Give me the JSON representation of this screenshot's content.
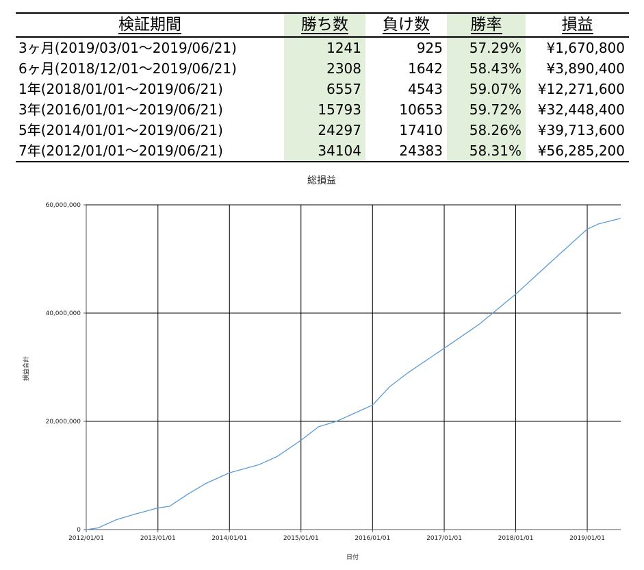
{
  "table": {
    "headers": [
      "検証期間",
      "勝ち数",
      "負け数",
      "勝率",
      "損益"
    ],
    "rows": [
      {
        "period": "3ヶ月(2019/03/01～2019/06/21)",
        "wins": "1241",
        "losses": "925",
        "win_rate": "57.29%",
        "profit": "¥1,670,800"
      },
      {
        "period": "6ヶ月(2018/12/01～2019/06/21)",
        "wins": "2308",
        "losses": "1642",
        "win_rate": "58.43%",
        "profit": "¥3,890,400"
      },
      {
        "period": "1年(2018/01/01～2019/06/21)",
        "wins": "6557",
        "losses": "4543",
        "win_rate": "59.07%",
        "profit": "¥12,271,600"
      },
      {
        "period": "3年(2016/01/01～2019/06/21)",
        "wins": "15793",
        "losses": "10653",
        "win_rate": "59.72%",
        "profit": "¥32,448,400"
      },
      {
        "period": "5年(2014/01/01～2019/06/21)",
        "wins": "24297",
        "losses": "17410",
        "win_rate": "58.26%",
        "profit": "¥39,713,600"
      },
      {
        "period": "7年(2012/01/01～2019/06/21)",
        "wins": "34104",
        "losses": "24383",
        "win_rate": "58.31%",
        "profit": "¥56,285,200"
      }
    ],
    "highlight_color": "#e2efda"
  },
  "chart_data": {
    "type": "line",
    "title": "総損益",
    "xlabel": "日付",
    "ylabel": "損益合計",
    "x_ticks": [
      "2012/01/01",
      "2013/01/01",
      "2014/01/01",
      "2015/01/01",
      "2016/01/01",
      "2017/01/01",
      "2018/01/01",
      "2019/01/01"
    ],
    "y_ticks": [
      "0",
      "20,000,000",
      "40,000,000",
      "60,000,000"
    ],
    "ylim": [
      0,
      60000000
    ],
    "xlim": [
      "2012/01/01",
      "2019/06/21"
    ],
    "grid": true,
    "line_color": "#5b9bd5",
    "series": [
      {
        "x": [
          "2012/01/01",
          "2012/03/01",
          "2012/06/01",
          "2012/09/01",
          "2013/01/01",
          "2013/03/01",
          "2013/06/01",
          "2013/09/01",
          "2014/01/01",
          "2014/06/01",
          "2014/09/01",
          "2015/01/01",
          "2015/04/01",
          "2015/07/01",
          "2016/01/01",
          "2016/04/01",
          "2016/07/01",
          "2017/01/01",
          "2017/07/01",
          "2018/01/01",
          "2018/07/01",
          "2019/01/01",
          "2019/03/01",
          "2019/06/21"
        ],
        "values": [
          0,
          300000,
          1800000,
          2800000,
          4000000,
          4300000,
          6500000,
          8500000,
          10500000,
          12000000,
          13500000,
          16500000,
          19000000,
          20000000,
          23000000,
          26500000,
          29000000,
          33500000,
          38000000,
          43500000,
          49500000,
          55500000,
          56500000,
          57500000
        ]
      }
    ]
  }
}
